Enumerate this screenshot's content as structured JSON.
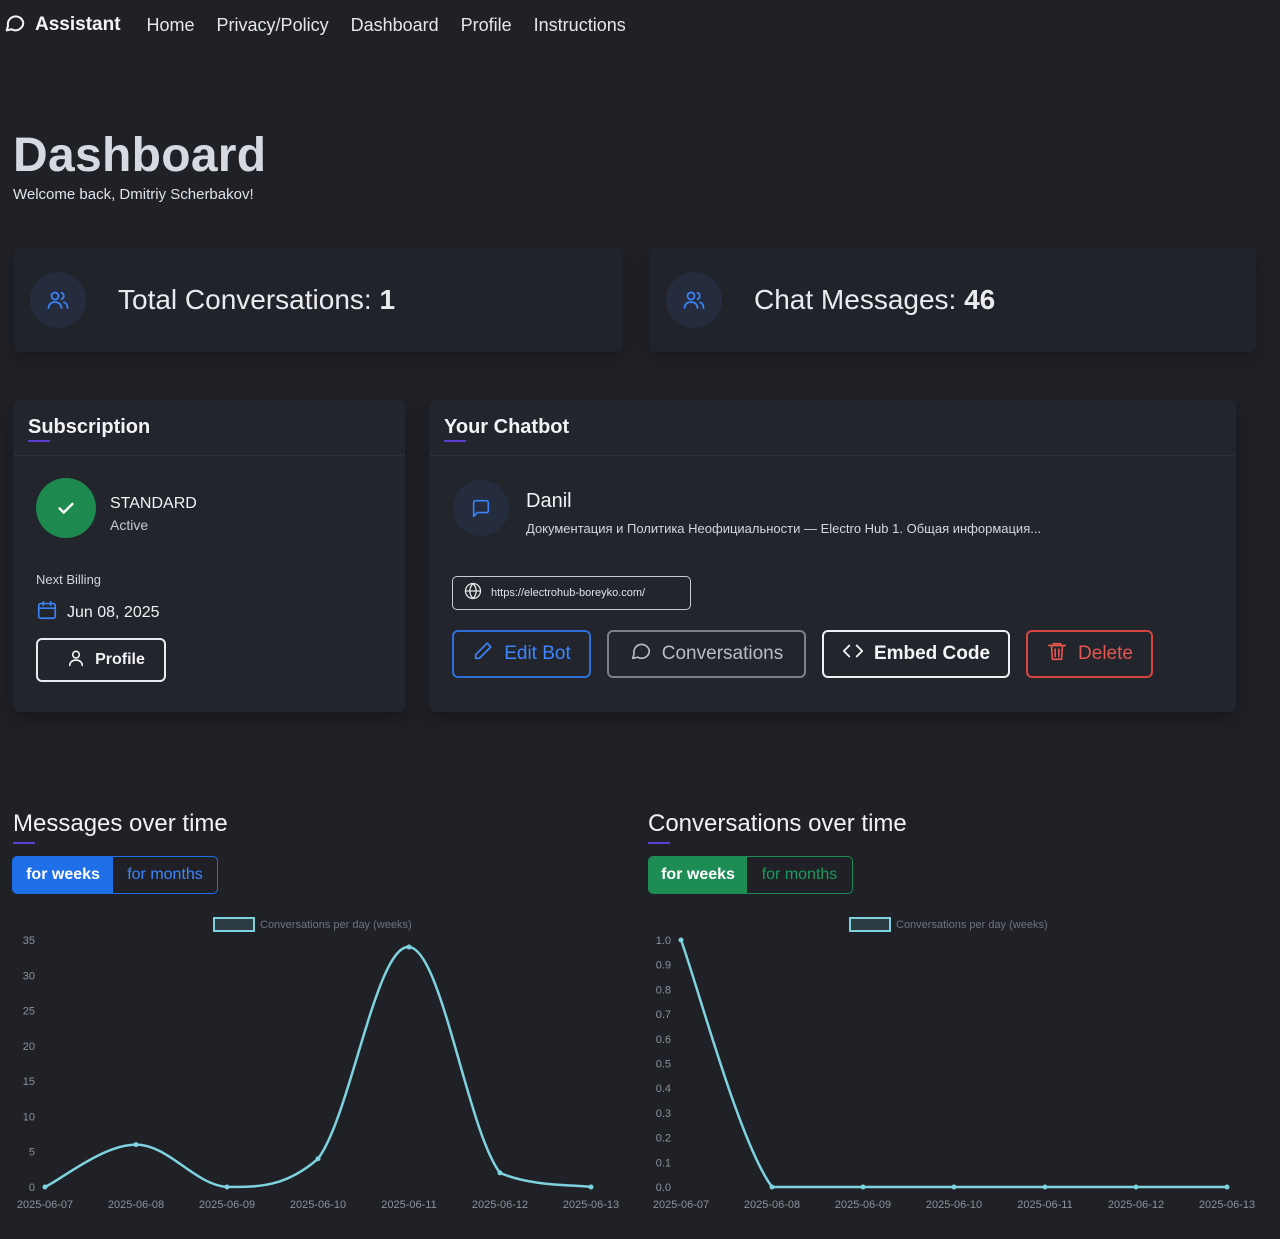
{
  "nav": {
    "brand": "Assistant",
    "links": [
      "Home",
      "Privacy/Policy",
      "Dashboard",
      "Profile",
      "Instructions"
    ]
  },
  "header": {
    "title": "Dashboard",
    "welcome": "Welcome back, Dmitriy Scherbakov!"
  },
  "stats": {
    "conversations_label": "Total Conversations: ",
    "conversations_value": "1",
    "messages_label": "Chat Messages: ",
    "messages_value": "46"
  },
  "subscription": {
    "title": "Subscription",
    "plan": "STANDARD",
    "status": "Active",
    "next_billing_label": "Next Billing",
    "next_billing_date": "Jun 08, 2025",
    "profile_button": "Profile"
  },
  "chatbot": {
    "title": "Your Chatbot",
    "name": "Danil",
    "description": "Документация и Политика Неофициальности — Electro Hub 1. Общая информация...",
    "url": "https://electrohub-boreyko.com/",
    "buttons": {
      "edit": "Edit Bot",
      "conversations": "Conversations",
      "embed": "Embed Code",
      "delete": "Delete"
    }
  },
  "charts": {
    "messages": {
      "title": "Messages over time",
      "toggle_weeks": "for weeks",
      "toggle_months": "for months"
    },
    "conversations": {
      "title": "Conversations over time",
      "toggle_weeks": "for weeks",
      "toggle_months": "for months"
    }
  },
  "colors": {
    "accent_blue": "#1f6fe8",
    "accent_green": "#1d8c55",
    "danger": "#d6453f",
    "line": "#7fd3de"
  },
  "chart_data": [
    {
      "type": "line",
      "legend": "Conversations per day (weeks)",
      "x": [
        "2025-06-07",
        "2025-06-08",
        "2025-06-09",
        "2025-06-10",
        "2025-06-11",
        "2025-06-12",
        "2025-06-13"
      ],
      "series": [
        {
          "name": "Conversations per day (weeks)",
          "values": [
            0,
            6,
            0,
            4,
            34,
            2,
            0
          ]
        }
      ],
      "ylim": [
        0,
        35
      ],
      "yticks": [
        0,
        5,
        10,
        15,
        20,
        25,
        30,
        35
      ],
      "grid": false,
      "legend_position": "top"
    },
    {
      "type": "line",
      "legend": "Conversations per day (weeks)",
      "x": [
        "2025-06-07",
        "2025-06-08",
        "2025-06-09",
        "2025-06-10",
        "2025-06-11",
        "2025-06-12",
        "2025-06-13"
      ],
      "series": [
        {
          "name": "Conversations per day (weeks)",
          "values": [
            1,
            0,
            0,
            0,
            0,
            0,
            0
          ]
        }
      ],
      "ylim": [
        0,
        1
      ],
      "yticks": [
        0,
        0.1,
        0.2,
        0.3,
        0.4,
        0.5,
        0.6,
        0.7,
        0.8,
        0.9,
        1.0
      ],
      "grid": false,
      "legend_position": "top"
    }
  ]
}
